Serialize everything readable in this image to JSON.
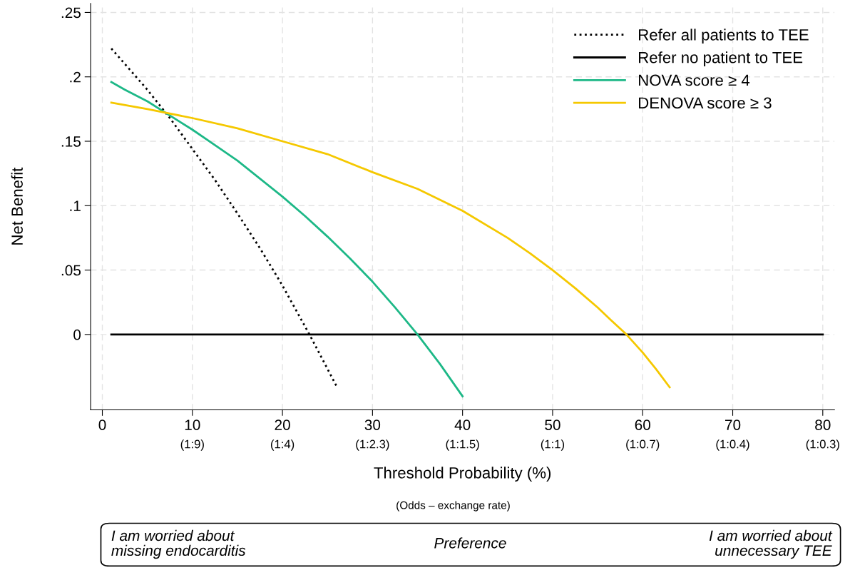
{
  "chart_data": {
    "type": "line",
    "xlabel": "Threshold Probability (%)",
    "ylabel": "Net Benefit",
    "xlim": [
      -1.3,
      81.3
    ],
    "ylim": [
      -0.0585,
      0.257
    ],
    "xticks": [
      0,
      10,
      20,
      30,
      40,
      50,
      60,
      70,
      80
    ],
    "yticks": [
      {
        "value": 0,
        "label": "0"
      },
      {
        "value": 0.05,
        "label": ".05"
      },
      {
        "value": 0.1,
        "label": ".1"
      },
      {
        "value": 0.15,
        "label": ".15"
      },
      {
        "value": 0.2,
        "label": ".2"
      },
      {
        "value": 0.25,
        "label": ".25"
      }
    ],
    "grid": true,
    "legend": "top right",
    "series": [
      {
        "name": "Refer all patients to TEE",
        "color": "#000000",
        "line_style": "dotted",
        "x": [
          1,
          2.5,
          5,
          7.5,
          10,
          12.5,
          15,
          17.5,
          20,
          23,
          26
        ],
        "values": [
          0.222,
          0.21,
          0.19,
          0.168,
          0.144,
          0.12,
          0.094,
          0.067,
          0.038,
          0.0,
          -0.04
        ]
      },
      {
        "name": "Refer no patient to TEE",
        "color": "#000000",
        "line_style": "solid",
        "x": [
          1,
          80
        ],
        "values": [
          0,
          0
        ]
      },
      {
        "name": "NOVA score ≥ 4",
        "color": "#1db887",
        "line_style": "solid",
        "x": [
          1,
          2.5,
          5,
          7.5,
          10,
          12.5,
          15,
          17.5,
          20,
          22.5,
          25,
          27.5,
          30,
          32.5,
          35,
          37.5,
          40
        ],
        "values": [
          0.196,
          0.19,
          0.181,
          0.17,
          0.159,
          0.147,
          0.135,
          0.121,
          0.107,
          0.092,
          0.076,
          0.059,
          0.041,
          0.021,
          0.0,
          -0.023,
          -0.048
        ]
      },
      {
        "name": "DENOVA score ≥ 3",
        "color": "#f5c800",
        "line_style": "solid",
        "x": [
          1,
          5,
          10,
          15,
          20,
          25,
          30,
          35,
          40,
          45,
          47.5,
          50,
          52.5,
          55,
          56.5,
          58.2,
          60,
          61.5,
          63
        ],
        "values": [
          0.18,
          0.175,
          0.168,
          0.16,
          0.15,
          0.14,
          0.126,
          0.113,
          0.096,
          0.075,
          0.063,
          0.05,
          0.036,
          0.021,
          0.011,
          0.0,
          -0.014,
          -0.027,
          -0.041
        ]
      }
    ],
    "annotations": [
      "(1:9)",
      "(1:4)",
      "(1:2.3)",
      "(1:1.5)",
      "(1:1)",
      "(1:0.7)",
      "(1:0.4)",
      "(1:0.3)",
      "(Odds – exchange rate)",
      "I am worried about\nmissing endocarditis",
      "Preference",
      "I am worried about\nunnecessary TEE"
    ]
  }
}
